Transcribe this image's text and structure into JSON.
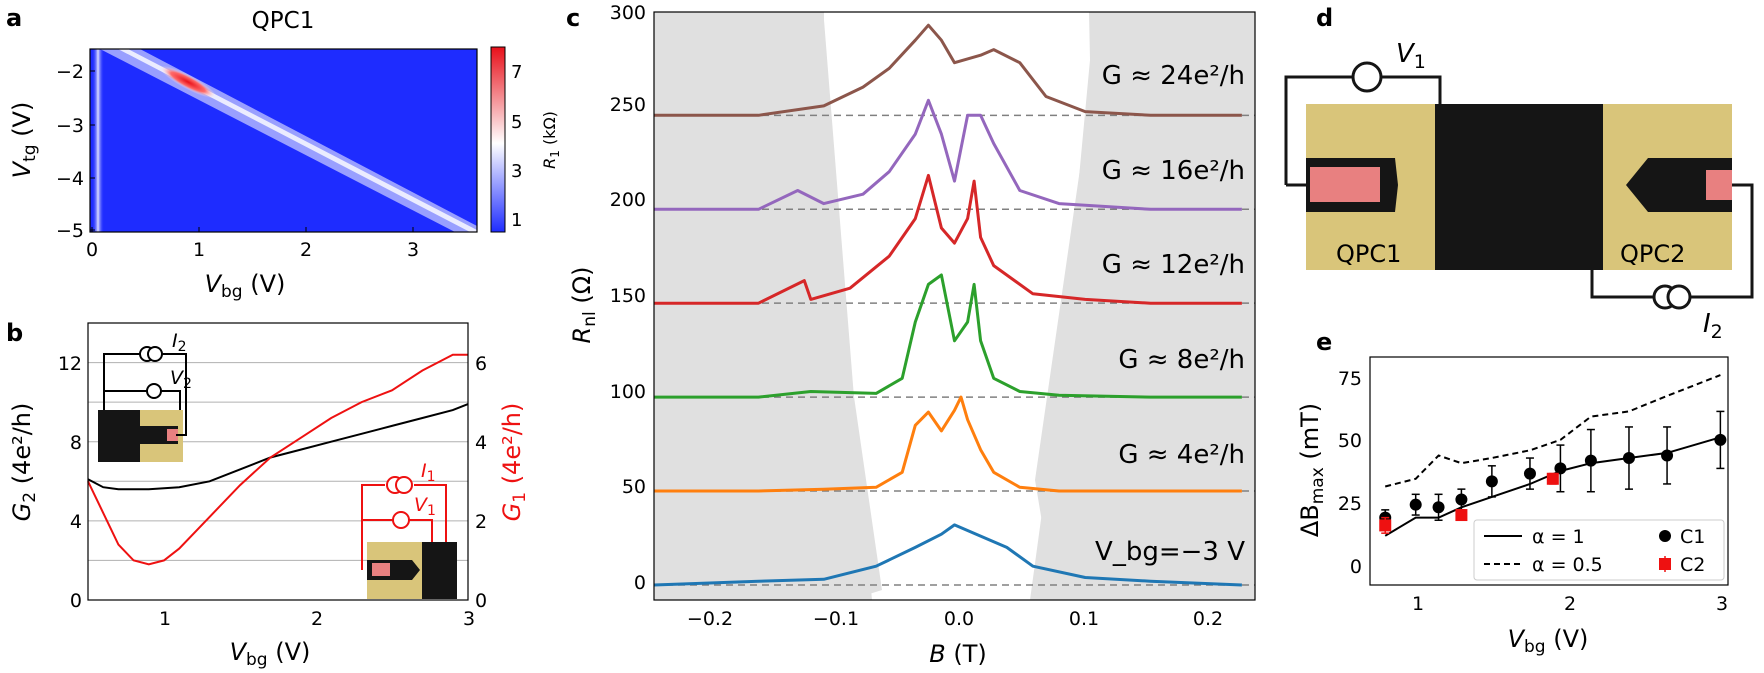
{
  "panels": {
    "a": {
      "letter": "a",
      "title": "QPC1",
      "xlabel": "V",
      "xlabel_sub": "bg",
      "xlabel_unit": " (V)",
      "ylabel": "V",
      "ylabel_sub": "tg",
      "ylabel_unit": " (V)",
      "xticks": [
        "0",
        "1",
        "2",
        "3"
      ],
      "yticks": [
        "−2",
        "−3",
        "−4",
        "−5"
      ],
      "colorbar_ticks": [
        "7",
        "5",
        "3",
        "1"
      ],
      "colorbar_label": "R",
      "colorbar_label_sub": "1",
      "colorbar_label_unit": " (kΩ)"
    },
    "b": {
      "letter": "b",
      "xlabel": "V",
      "xlabel_sub": "bg",
      "xlabel_unit": " (V)",
      "ylabel_left": "G",
      "ylabel_left_sub": "2",
      "ylabel_left_unit": " (4e²/h)",
      "ylabel_right": "G",
      "ylabel_right_sub": "1",
      "ylabel_right_unit": " (4e²/h)",
      "xticks": [
        "1",
        "2",
        "3"
      ],
      "yticks_left": [
        "0",
        "4",
        "8",
        "12"
      ],
      "yticks_right": [
        "0",
        "2",
        "4",
        "6"
      ],
      "inset_top": {
        "current": "I",
        "current_sub": "2",
        "voltage": "V",
        "voltage_sub": "2"
      },
      "inset_bottom": {
        "current": "I",
        "current_sub": "1",
        "voltage": "V",
        "voltage_sub": "1"
      }
    },
    "c": {
      "letter": "c",
      "xlabel": "B",
      "xlabel_unit": " (T)",
      "ylabel": "R",
      "ylabel_sub": "nl",
      "ylabel_unit": " (Ω)",
      "xticks": [
        "−0.2",
        "−0.1",
        "0.0",
        "0.1",
        "0.2"
      ],
      "yticks": [
        "0",
        "50",
        "100",
        "150",
        "200",
        "250",
        "300"
      ],
      "curve_labels": [
        "G ≈ 24e²/h",
        "G ≈ 16e²/h",
        "G ≈ 12e²/h",
        "G ≈ 8e²/h",
        "G ≈ 4e²/h",
        "V_bg=−3 V"
      ]
    },
    "d": {
      "letter": "d",
      "voltage": "V",
      "voltage_sub": "1",
      "current": "I",
      "current_sub": "2",
      "left_label": "QPC1",
      "right_label": "QPC2"
    },
    "e": {
      "letter": "e",
      "xlabel": "V",
      "xlabel_sub": "bg",
      "xlabel_unit": " (V)",
      "ylabel": "ΔB",
      "ylabel_sub": "max",
      "ylabel_unit": " (mT)",
      "xticks": [
        "1",
        "2",
        "3"
      ],
      "yticks": [
        "0",
        "25",
        "50",
        "75"
      ],
      "legend": {
        "solid": "α = 1",
        "dashed": "α = 0.5",
        "c1": "C1",
        "c2": "C2"
      }
    }
  },
  "colors": {
    "gray_region": "#e0e0e0",
    "colormap_low": "#1e2cff",
    "colormap_mid": "#ffffff",
    "colormap_high": "#e8101a",
    "g1_red": "#ee1111",
    "gold": "#d9c57a",
    "dark": "#151515",
    "pink": "#e88080"
  },
  "chart_data": [
    {
      "panel": "b",
      "type": "line",
      "xlabel": "V_bg (V)",
      "ylim_left": [
        0,
        14
      ],
      "ylim_right": [
        0,
        7
      ],
      "xlim": [
        0.5,
        3.0
      ],
      "series": [
        {
          "name": "G2",
          "axis": "left",
          "color": "#000000",
          "x": [
            0.5,
            0.6,
            0.7,
            0.9,
            1.1,
            1.3,
            1.5,
            1.7,
            1.9,
            2.1,
            2.3,
            2.5,
            2.7,
            2.9,
            3.0
          ],
          "y": [
            6.1,
            5.7,
            5.6,
            5.6,
            5.7,
            6.0,
            6.6,
            7.2,
            7.6,
            8.0,
            8.4,
            8.8,
            9.2,
            9.6,
            9.9
          ]
        },
        {
          "name": "G1",
          "axis": "right",
          "color": "#ee1111",
          "x": [
            0.5,
            0.6,
            0.7,
            0.8,
            0.9,
            1.0,
            1.1,
            1.3,
            1.5,
            1.7,
            1.9,
            2.1,
            2.3,
            2.5,
            2.7,
            2.8,
            2.9,
            3.0
          ],
          "y": [
            3.0,
            2.2,
            1.4,
            1.0,
            0.9,
            1.0,
            1.3,
            2.1,
            2.9,
            3.6,
            4.1,
            4.6,
            5.0,
            5.3,
            5.8,
            6.0,
            6.2,
            6.2
          ]
        }
      ]
    },
    {
      "panel": "c",
      "type": "line",
      "xlabel": "B (T)",
      "ylabel": "R_nl (Ω)",
      "xlim": [
        -0.23,
        0.23
      ],
      "ylim": [
        -8,
        305
      ],
      "baselines": [
        0,
        50,
        100,
        150,
        200,
        250
      ],
      "series": [
        {
          "name": "V_bg=−3 V",
          "color": "#1f77b4",
          "x": [
            -0.23,
            -0.15,
            -0.1,
            -0.06,
            -0.03,
            -0.01,
            0.0,
            0.02,
            0.04,
            0.06,
            0.1,
            0.15,
            0.22
          ],
          "y": [
            0,
            2,
            3,
            10,
            20,
            27,
            32,
            26,
            20,
            10,
            4,
            2,
            0
          ]
        },
        {
          "name": "G ≈ 4e²/h",
          "color": "#ff7f0e",
          "x": [
            -0.23,
            -0.15,
            -0.1,
            -0.06,
            -0.04,
            -0.03,
            -0.02,
            -0.01,
            0.0,
            0.005,
            0.01,
            0.02,
            0.03,
            0.05,
            0.08,
            0.15,
            0.22
          ],
          "y": [
            50,
            50,
            51,
            52,
            60,
            85,
            92,
            82,
            93,
            100,
            88,
            72,
            60,
            52,
            50,
            50,
            50
          ]
        },
        {
          "name": "G ≈ 8e²/h",
          "color": "#2ca02c",
          "x": [
            -0.23,
            -0.15,
            -0.11,
            -0.06,
            -0.04,
            -0.03,
            -0.02,
            -0.01,
            0.0,
            0.01,
            0.015,
            0.02,
            0.03,
            0.05,
            0.08,
            0.15,
            0.22
          ],
          "y": [
            100,
            100,
            103,
            102,
            110,
            140,
            160,
            165,
            130,
            140,
            160,
            130,
            110,
            103,
            101,
            100,
            100
          ]
        },
        {
          "name": "G ≈ 12e²/h",
          "color": "#d62728",
          "x": [
            -0.23,
            -0.15,
            -0.115,
            -0.11,
            -0.08,
            -0.05,
            -0.03,
            -0.02,
            -0.01,
            0.0,
            0.01,
            0.015,
            0.02,
            0.03,
            0.06,
            0.1,
            0.15,
            0.22
          ],
          "y": [
            150,
            150,
            162,
            152,
            158,
            175,
            195,
            218,
            190,
            182,
            195,
            215,
            185,
            170,
            155,
            152,
            150,
            150
          ]
        },
        {
          "name": "G ≈ 16e²/h",
          "color": "#9467bd",
          "x": [
            -0.23,
            -0.15,
            -0.12,
            -0.1,
            -0.07,
            -0.05,
            -0.03,
            -0.02,
            -0.01,
            0.0,
            0.01,
            0.02,
            0.03,
            0.05,
            0.08,
            0.15,
            0.22
          ],
          "y": [
            200,
            200,
            210,
            203,
            208,
            220,
            240,
            258,
            240,
            215,
            250,
            250,
            235,
            210,
            203,
            200,
            200
          ]
        },
        {
          "name": "G ≈ 24e²/h",
          "color": "#8c564b",
          "x": [
            -0.23,
            -0.15,
            -0.1,
            -0.07,
            -0.05,
            -0.03,
            -0.02,
            -0.01,
            0.0,
            0.02,
            0.03,
            0.05,
            0.07,
            0.1,
            0.15,
            0.22
          ],
          "y": [
            250,
            250,
            255,
            265,
            275,
            290,
            298,
            290,
            278,
            282,
            285,
            278,
            260,
            252,
            250,
            250
          ]
        }
      ]
    },
    {
      "panel": "e",
      "type": "scatter",
      "xlabel": "V_bg (V)",
      "ylabel": "ΔB_max (mT)",
      "xlim": [
        0.7,
        3.05
      ],
      "ylim": [
        -8,
        80
      ],
      "series": [
        {
          "name": "α = 1",
          "style": "solid",
          "x": [
            0.8,
            1.0,
            1.15,
            1.3,
            1.5,
            1.75,
            1.95,
            2.15,
            2.4,
            2.65,
            3.0
          ],
          "y": [
            11,
            18,
            18,
            22,
            26,
            31,
            36,
            39,
            41,
            43,
            49
          ]
        },
        {
          "name": "α = 0.5",
          "style": "dashed",
          "x": [
            0.8,
            1.0,
            1.15,
            1.3,
            1.5,
            1.75,
            1.95,
            2.15,
            2.4,
            2.65,
            3.0
          ],
          "y": [
            30,
            33,
            42,
            39,
            41,
            44,
            48,
            57,
            59,
            65,
            73
          ]
        },
        {
          "name": "C1",
          "marker": "circle",
          "color": "#000000",
          "x": [
            0.8,
            1.0,
            1.15,
            1.3,
            1.5,
            1.75,
            1.95,
            2.15,
            2.4,
            2.65,
            3.0
          ],
          "y": [
            18,
            23,
            22,
            25,
            32,
            35,
            37,
            40,
            41,
            42,
            48
          ],
          "err": [
            3,
            4,
            5,
            4,
            6,
            6,
            9,
            12,
            12,
            11,
            11
          ]
        },
        {
          "name": "C2",
          "marker": "square",
          "color": "#ee1111",
          "x": [
            0.8,
            1.3,
            1.9
          ],
          "y": [
            15,
            19,
            33
          ],
          "err": [
            3,
            2,
            2
          ]
        }
      ]
    }
  ]
}
